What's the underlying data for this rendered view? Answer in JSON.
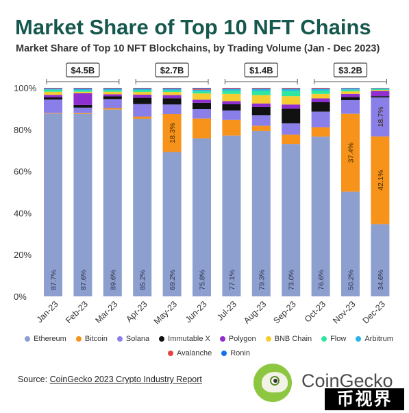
{
  "title": "Market Share of Top 10 NFT Chains",
  "subtitle": "Market Share of Top 10 NFT Blockchains, by Trading Volume (Jan - Dec 2023)",
  "source_prefix": "Source: ",
  "source_link": "CoinGecko 2023 Crypto Industry Report",
  "brand": "CoinGecko",
  "watermark": "币视界",
  "colors": {
    "Ethereum": "#8d9fcf",
    "Bitcoin": "#f7931a",
    "Solana": "#8a7fe8",
    "Immutable X": "#111111",
    "Polygon": "#8e2fcf",
    "BNB Chain": "#f6cc30",
    "Flow": "#2ee6a0",
    "Arbitrum": "#28b4e4",
    "Avalanche": "#e84142",
    "Ronin": "#1273ea",
    "title": "#17584e",
    "logo_green": "#8dc63f"
  },
  "chart_data": {
    "type": "bar",
    "stacked": true,
    "categories": [
      "Jan-23",
      "Feb-23",
      "Mar-23",
      "Apr-23",
      "May-23",
      "Jun-23",
      "Jul-23",
      "Aug-23",
      "Sep-23",
      "Oct-23",
      "Nov-23",
      "Dec-23"
    ],
    "ylim": [
      0,
      100
    ],
    "yticks": [
      "0%",
      "20%",
      "40%",
      "60%",
      "80%",
      "100%"
    ],
    "grid": false,
    "legend_placement": "bottom",
    "series": [
      {
        "name": "Ethereum",
        "values": [
          87.7,
          87.6,
          89.6,
          85.2,
          69.2,
          75.8,
          77.1,
          79.3,
          73.0,
          76.6,
          50.2,
          34.6
        ]
      },
      {
        "name": "Bitcoin",
        "values": [
          0.2,
          0.3,
          0.7,
          1.0,
          18.3,
          9.5,
          7.5,
          2.5,
          4.5,
          4.5,
          37.4,
          42.1
        ]
      },
      {
        "name": "Solana",
        "values": [
          6.5,
          2.6,
          4.3,
          6.0,
          4.5,
          4.5,
          4.5,
          5.0,
          5.5,
          7.5,
          6.5,
          18.7
        ]
      },
      {
        "name": "Immutable X",
        "values": [
          1.0,
          1.3,
          1.3,
          3.0,
          3.0,
          3.0,
          3.0,
          4.0,
          7.0,
          4.5,
          1.5,
          0.6
        ]
      },
      {
        "name": "Polygon",
        "values": [
          1.2,
          5.6,
          1.0,
          1.5,
          1.5,
          1.5,
          1.5,
          1.7,
          2.0,
          1.8,
          1.5,
          2.5
        ]
      },
      {
        "name": "BNB Chain",
        "values": [
          1.5,
          0.7,
          1.2,
          1.3,
          1.5,
          3.0,
          3.5,
          4.0,
          4.0,
          2.2,
          1.2,
          0.5
        ]
      },
      {
        "name": "Flow",
        "values": [
          1.0,
          0.7,
          0.8,
          1.0,
          0.8,
          1.0,
          1.5,
          2.0,
          2.5,
          1.6,
          0.8,
          0.4
        ]
      },
      {
        "name": "Arbitrum",
        "values": [
          0.4,
          0.6,
          0.6,
          0.5,
          0.6,
          0.8,
          0.8,
          0.9,
          0.9,
          0.7,
          0.5,
          0.3
        ]
      },
      {
        "name": "Avalanche",
        "values": [
          0.3,
          0.3,
          0.3,
          0.3,
          0.3,
          0.5,
          0.4,
          0.4,
          0.4,
          0.4,
          0.2,
          0.2
        ]
      },
      {
        "name": "Ronin",
        "values": [
          0.2,
          0.3,
          0.2,
          0.2,
          0.3,
          0.4,
          0.2,
          0.2,
          0.2,
          0.2,
          0.2,
          0.1
        ]
      }
    ],
    "data_labels": [
      {
        "series": "Ethereum",
        "labels": [
          "87.7%",
          "87.6%",
          "89.6%",
          "85.2%",
          "69.2%",
          "75.8%",
          "77.1%",
          "79.3%",
          "73.0%",
          "76.6%",
          "50.2%",
          "34.6%"
        ]
      },
      {
        "series": "Bitcoin",
        "labels": [
          "",
          "",
          "",
          "",
          "18.3%",
          "",
          "",
          "",
          "",
          "",
          "37.4%",
          "42.1%"
        ]
      },
      {
        "series": "Solana",
        "labels": [
          "",
          "",
          "",
          "",
          "",
          "",
          "",
          "",
          "",
          "",
          "",
          "18.7%"
        ]
      }
    ],
    "quarter_totals": [
      {
        "label": "$4.5B",
        "months": [
          0,
          2
        ]
      },
      {
        "label": "$2.7B",
        "months": [
          3,
          5
        ]
      },
      {
        "label": "$1.4B",
        "months": [
          6,
          8
        ]
      },
      {
        "label": "$3.2B",
        "months": [
          9,
          11
        ]
      }
    ]
  }
}
